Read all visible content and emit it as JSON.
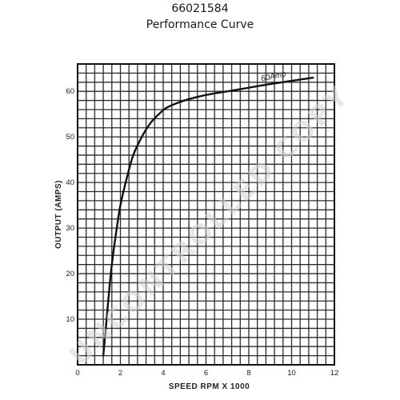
{
  "header": {
    "number": "66021584",
    "title": "Performance Curve"
  },
  "watermark": "UNCONTROLLED COPY",
  "chart_data": {
    "type": "line",
    "title": "Performance Curve",
    "xlabel": "SPEED RPM X 1000",
    "ylabel": "OUTPUT (AMPS)",
    "xlim": [
      0,
      12
    ],
    "ylim": [
      0,
      66
    ],
    "grid": true,
    "xticks": [
      0,
      2,
      4,
      6,
      8,
      10,
      12
    ],
    "yticks": [
      10,
      20,
      30,
      40,
      50,
      60
    ],
    "annotation": "60Amp",
    "series": [
      {
        "x": [
          1.2,
          1.3,
          1.45,
          1.6,
          1.8,
          2.0,
          2.3,
          2.6,
          3.0,
          3.4,
          3.8,
          4.2,
          5.0,
          6.0,
          7.0,
          8.0,
          9.0,
          10.0,
          11.0
        ],
        "y": [
          2,
          7,
          15,
          22,
          29,
          35,
          41,
          46,
          50,
          53,
          55,
          56.5,
          58,
          59.2,
          60,
          60.8,
          61.6,
          62.3,
          63
        ]
      }
    ],
    "colors": {
      "grid": "#2b2b2b",
      "curve": "#111111"
    }
  }
}
